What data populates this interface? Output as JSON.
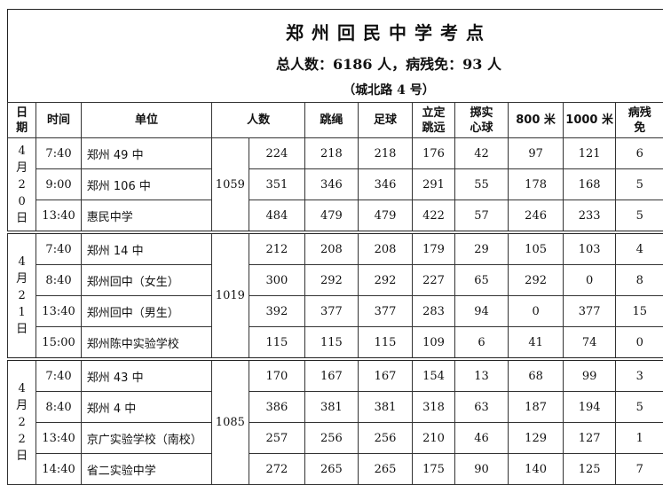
{
  "title": "郑州回民中学考点",
  "summary": "总人数：6186 人，病残免：93 人",
  "address": "（城北路 4 号）",
  "headers": {
    "date": "日期",
    "time": "时间",
    "unit": "单位",
    "count": "人数",
    "rope": "跳绳",
    "football": "足球",
    "jump": "立定跳远",
    "ball": "掷实心球",
    "m800": "800 米",
    "m1000": "1000 米",
    "exempt": "病残免"
  },
  "days": [
    {
      "date": "4月20日",
      "total": "1059",
      "rows": [
        [
          "7:40",
          "郑州 49 中",
          "224",
          "218",
          "218",
          "176",
          "42",
          "97",
          "121",
          "6"
        ],
        [
          "9:00",
          "郑州 106 中",
          "351",
          "346",
          "346",
          "291",
          "55",
          "178",
          "168",
          "5"
        ],
        [
          "13:40",
          "惠民中学",
          "484",
          "479",
          "479",
          "422",
          "57",
          "246",
          "233",
          "5"
        ]
      ]
    },
    {
      "date": "4月21日",
      "total": "1019",
      "rows": [
        [
          "7:40",
          "郑州 14 中",
          "212",
          "208",
          "208",
          "179",
          "29",
          "105",
          "103",
          "4"
        ],
        [
          "8:40",
          "郑州回中（女生）",
          "300",
          "292",
          "292",
          "227",
          "65",
          "292",
          "0",
          "8"
        ],
        [
          "13:40",
          "郑州回中（男生）",
          "392",
          "377",
          "377",
          "283",
          "94",
          "0",
          "377",
          "15"
        ],
        [
          "15:00",
          "郑州陈中实验学校",
          "115",
          "115",
          "115",
          "109",
          "6",
          "41",
          "74",
          "0"
        ]
      ]
    },
    {
      "date": "4月22日",
      "total": "1085",
      "rows": [
        [
          "7:40",
          "郑州 43 中",
          "170",
          "167",
          "167",
          "154",
          "13",
          "68",
          "99",
          "3"
        ],
        [
          "8:40",
          "郑州 4 中",
          "386",
          "381",
          "381",
          "318",
          "63",
          "187",
          "194",
          "5"
        ],
        [
          "13:40",
          "京广实验学校（南校）",
          "257",
          "256",
          "256",
          "210",
          "46",
          "129",
          "127",
          "1"
        ],
        [
          "14:40",
          "省二实验中学",
          "272",
          "265",
          "265",
          "175",
          "90",
          "140",
          "125",
          "7"
        ]
      ]
    }
  ]
}
